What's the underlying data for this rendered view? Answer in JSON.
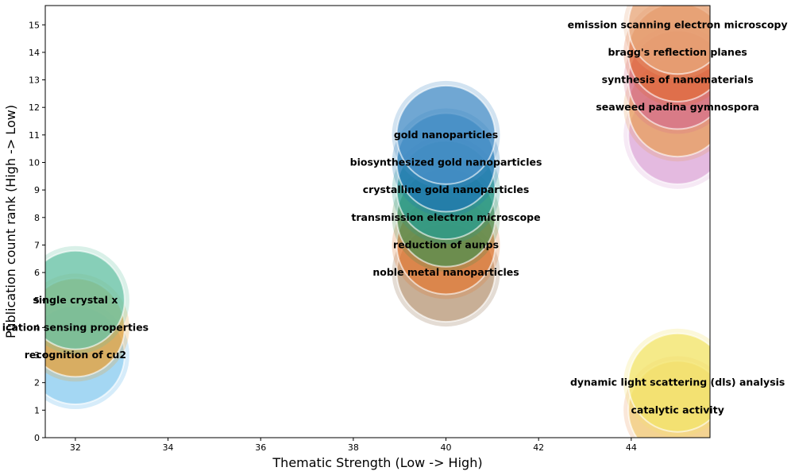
{
  "chart_data": {
    "type": "scatter",
    "subtype": "bubble",
    "title": "",
    "xlabel": "Thematic Strength (Low -> High)",
    "ylabel": "Publication count rank (High -> Low)",
    "xlim": [
      31.35,
      45.7
    ],
    "ylim": [
      0,
      15.7
    ],
    "xticks": [
      32,
      34,
      36,
      38,
      40,
      42,
      44
    ],
    "yticks": [
      0,
      1,
      2,
      3,
      4,
      5,
      6,
      7,
      8,
      9,
      10,
      11,
      12,
      13,
      14,
      15
    ],
    "grid": false,
    "legend": false,
    "points": [
      {
        "label": "single crystal x",
        "x": 32,
        "y": 5,
        "color": "#66c2a5"
      },
      {
        "label": "ication sensing properties",
        "x": 32,
        "y": 4,
        "color": "#e6a23c"
      },
      {
        "label": "recognition of cu2",
        "x": 32,
        "y": 3,
        "color": "#9fd4f2"
      },
      {
        "label": "gold nanoparticles",
        "x": 40,
        "y": 11,
        "color": "#4a90c8"
      },
      {
        "label": "biosynthesized gold nanoparticles",
        "x": 40,
        "y": 10,
        "color": "#1f77b4"
      },
      {
        "label": "crystalline gold nanoparticles",
        "x": 40,
        "y": 9,
        "color": "#2a9d8f"
      },
      {
        "label": "transmission electron microscope",
        "x": 40,
        "y": 8,
        "color": "#4f8f4f"
      },
      {
        "label": "reduction of aunps",
        "x": 40,
        "y": 7,
        "color": "#e07b39"
      },
      {
        "label": "noble metal nanoparticles",
        "x": 40,
        "y": 6,
        "color": "#c8a888"
      },
      {
        "label": "emission scanning electron microscopy",
        "x": 45,
        "y": 15,
        "color": "#e8a87c"
      },
      {
        "label": "bragg's reflection planes",
        "x": 45,
        "y": 14,
        "color": "#e06c3c"
      },
      {
        "label": "synthesis of nanomaterials",
        "x": 45,
        "y": 13,
        "color": "#d6708a"
      },
      {
        "label": "seaweed padina gymnospora",
        "x": 45,
        "y": 12,
        "color": "#e8a060"
      },
      {
        "label": "dynamic light scattering (dls) analysis",
        "x": 45,
        "y": 2,
        "color": "#f2e46a"
      },
      {
        "label": "catalytic activity",
        "x": 45,
        "y": 1,
        "color": "#f3d77a"
      }
    ],
    "shadow_points": [
      {
        "x": 32,
        "y": 3,
        "color": "#a3d8f4"
      },
      {
        "x": 40,
        "y": 6,
        "color": "#bdbdbd"
      },
      {
        "x": 45,
        "y": 11,
        "color": "#dca8d8"
      },
      {
        "x": 45,
        "y": 1,
        "color": "#f7b6e8"
      }
    ]
  }
}
